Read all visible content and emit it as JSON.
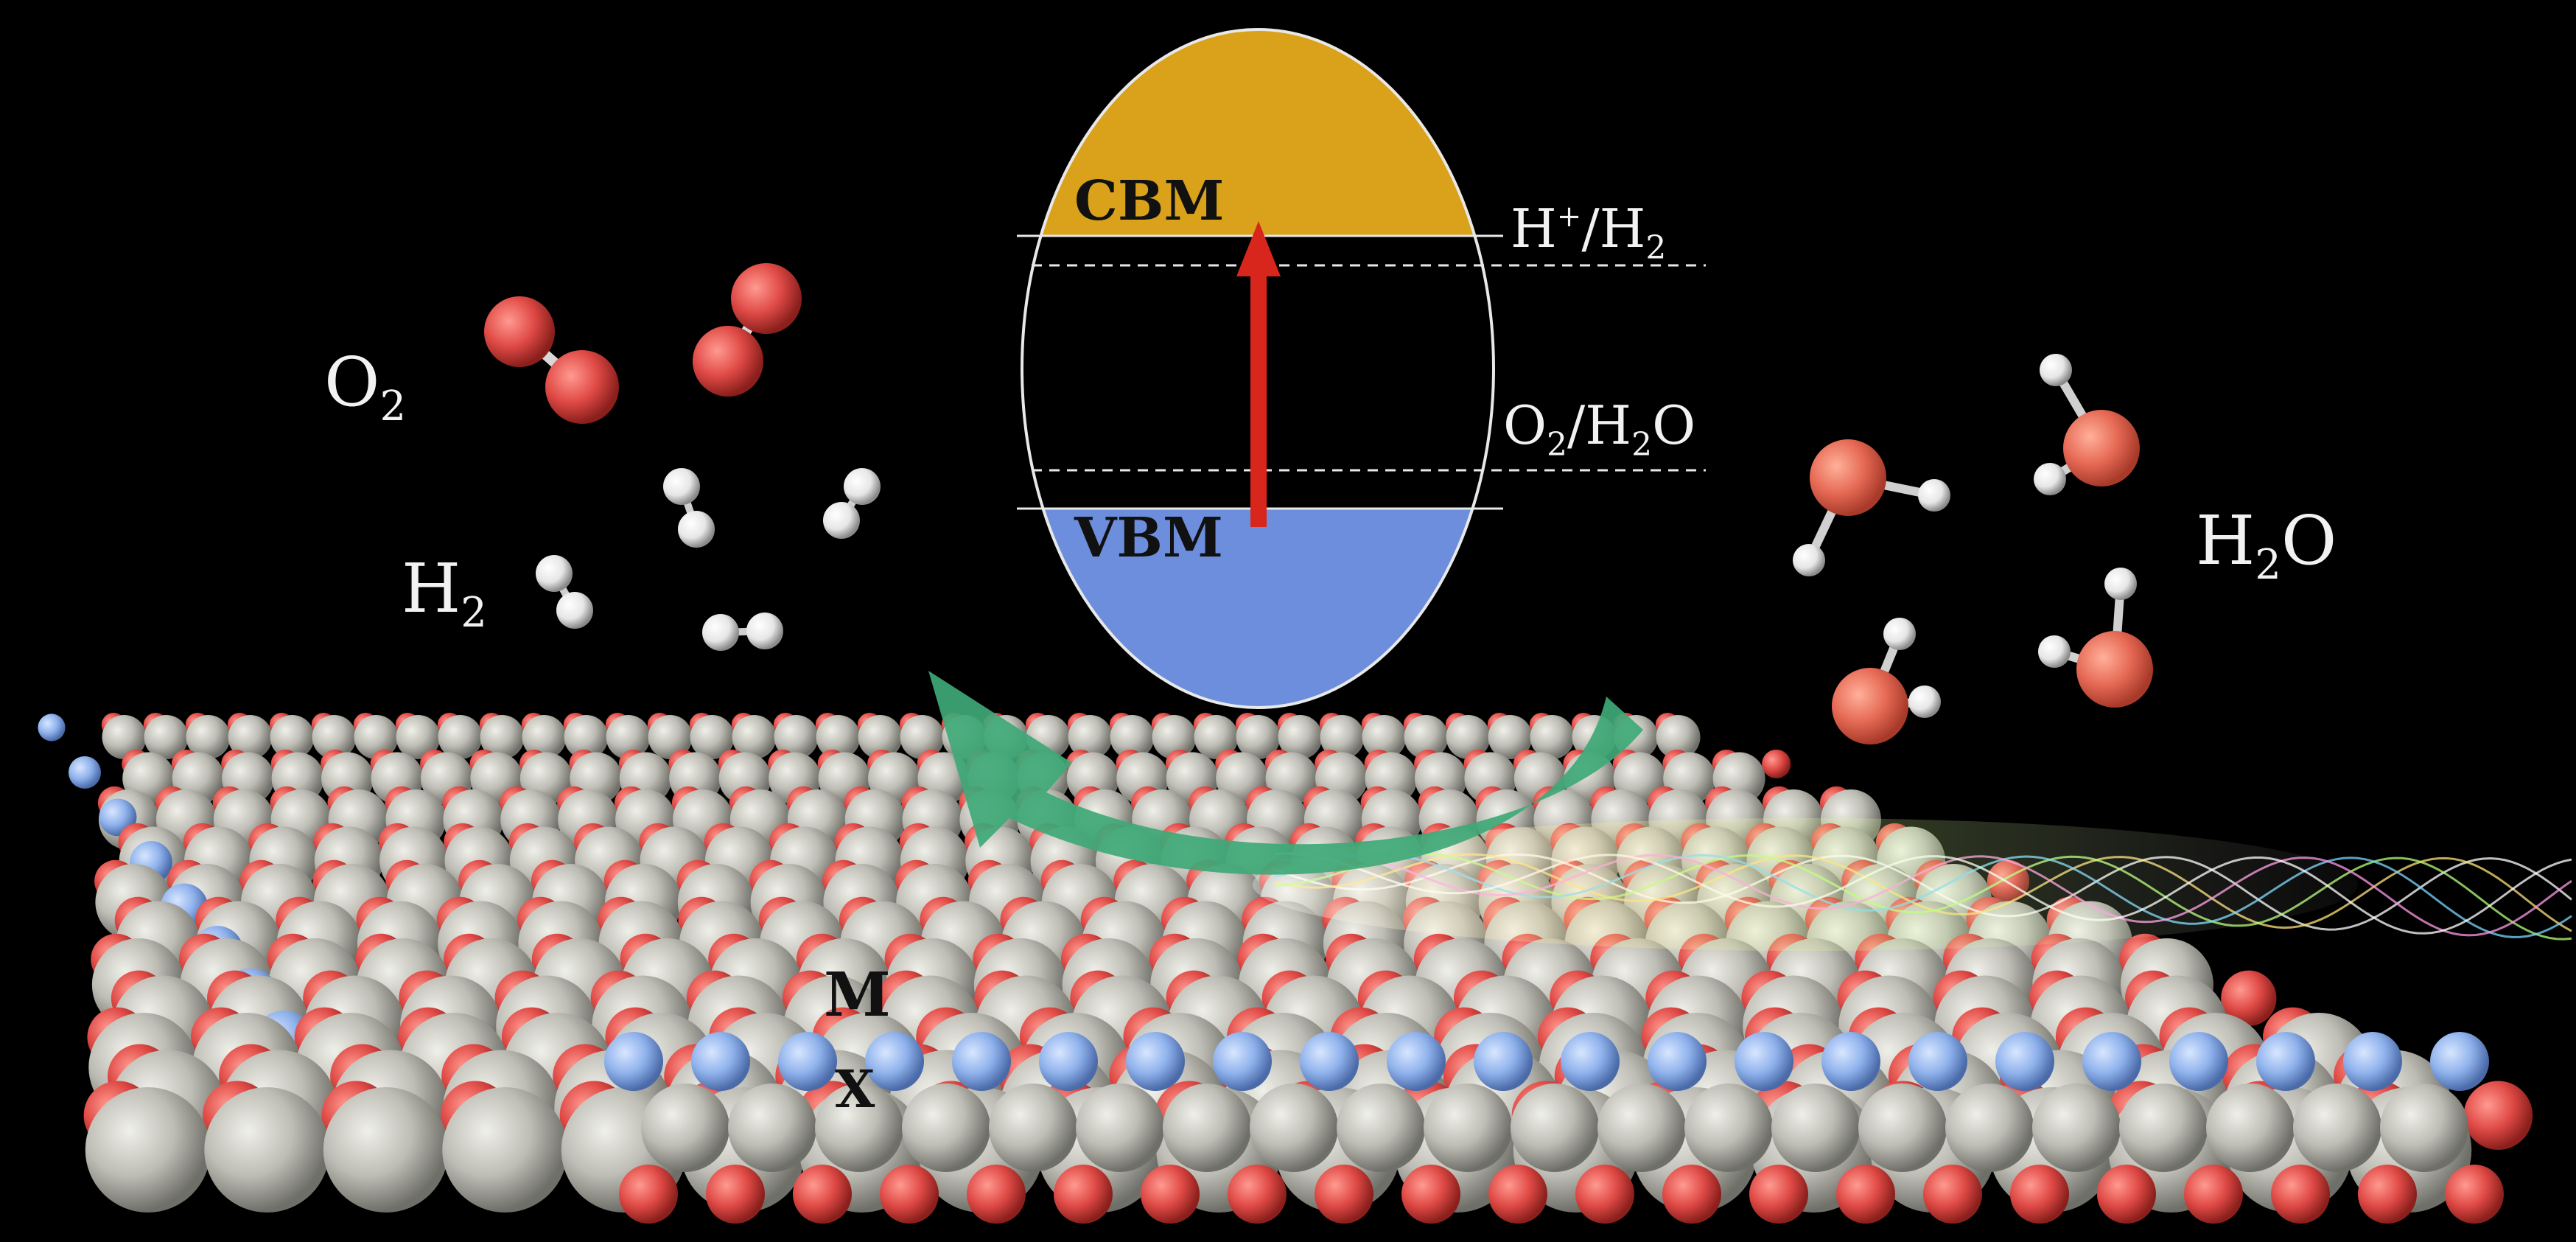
{
  "labels": {
    "cbm": "CBM",
    "vbm": "VBM",
    "h_plus_h2": {
      "main": "H",
      "sup": "+",
      "rest": "/H",
      "sub": "2"
    },
    "o2_h2o": {
      "a": "O",
      "sub1": "2",
      "b": "/H",
      "sub2": "2",
      "c": "O"
    },
    "o2": {
      "main": "O",
      "sub": "2"
    },
    "h2": {
      "main": "H",
      "sub": "2"
    },
    "h2o": {
      "a": "H",
      "sub": "2",
      "b": "O"
    },
    "atom_m": "M",
    "atom_x": "X"
  },
  "colors": {
    "background": "#000000",
    "conduction_band": "#D9A21A",
    "valence_band": "#6D8EDD",
    "arrow": "#D9261C",
    "curved_arrow": "#3FA877",
    "atom_metal": "#B8B8B0",
    "atom_oxygen_red": "#E04A46",
    "atom_x_blue": "#8FB2EC",
    "atom_hydrogen": "#EDEDED",
    "label_text": "#F2F2F2"
  }
}
